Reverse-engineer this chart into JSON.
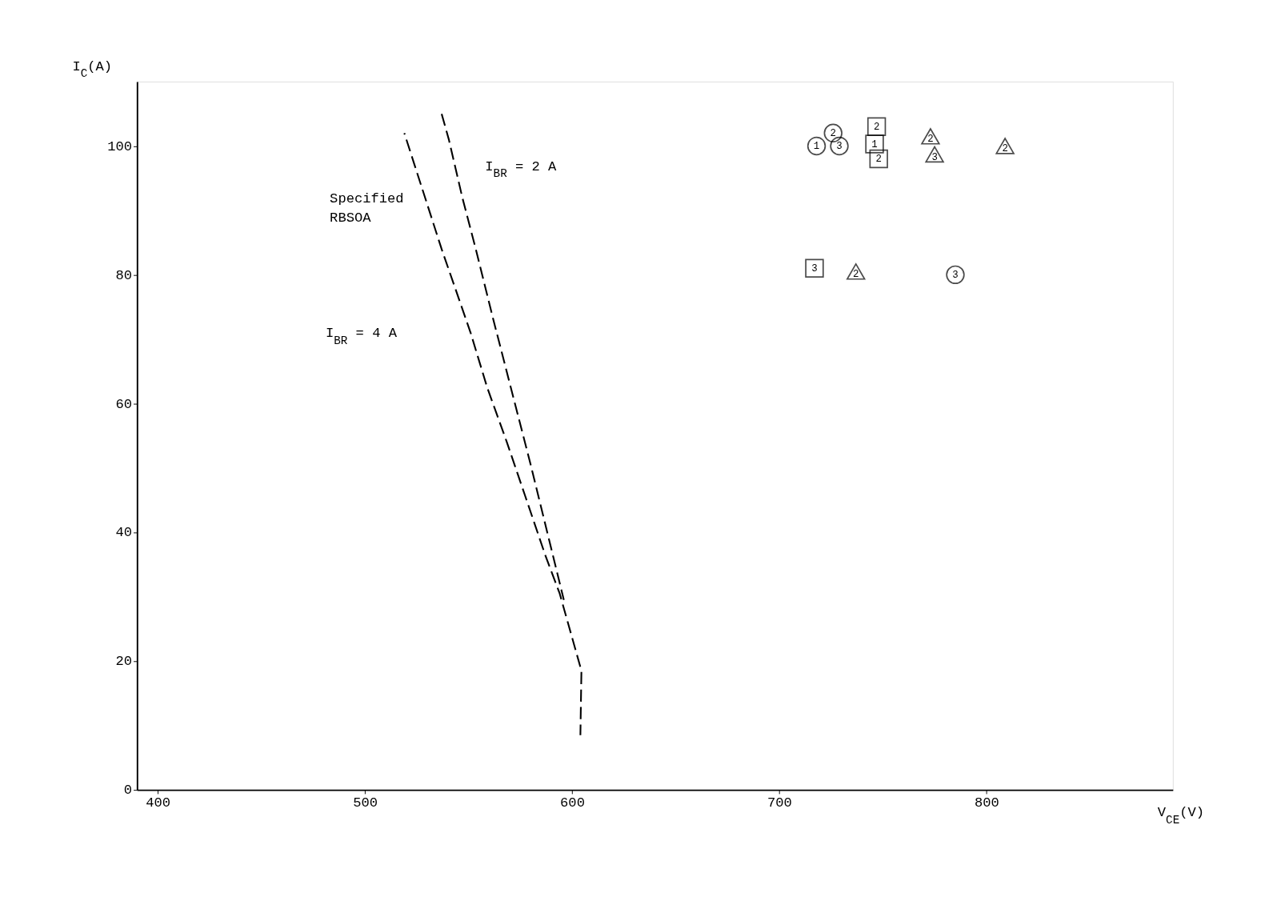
{
  "chart_data": {
    "type": "line",
    "xlabel": "V$_{CE}$(V)",
    "ylabel": "I$_{C}$(A)",
    "xlim": [
      390,
      890
    ],
    "ylim": [
      0,
      110
    ],
    "xticks": [
      400,
      500,
      600,
      700,
      800
    ],
    "yticks": [
      0,
      20,
      40,
      60,
      80,
      100
    ],
    "grid": false,
    "line_style": "dashed",
    "series": [
      {
        "color": "#000000",
        "x": [
          519,
          524,
          531,
          537,
          551,
          559,
          568.5,
          577.5,
          587,
          594,
          604.5,
          604
        ],
        "values": [
          102,
          97,
          90,
          84,
          71,
          62.5,
          54,
          45.5,
          36.5,
          30.5,
          18.5,
          8.5
        ]
      },
      {
        "color": "#000000",
        "x": [
          537,
          540.5,
          547,
          553.5,
          562,
          570,
          580,
          588,
          596
        ],
        "values": [
          105,
          101,
          92,
          84,
          73,
          63,
          50.5,
          40,
          29.5
        ]
      },
      {
        "type": "scatter",
        "name": "1",
        "marker": "circle",
        "color": "#000000",
        "x": [
          718
        ],
        "values": [
          100
        ]
      },
      {
        "type": "scatter",
        "name": "2",
        "marker": "circle",
        "color": "#000000",
        "x": [
          726
        ],
        "values": [
          102
        ]
      },
      {
        "type": "scatter",
        "name": "3",
        "marker": "circle",
        "color": "#000000",
        "x": [
          729,
          785
        ],
        "values": [
          100,
          80
        ]
      },
      {
        "type": "scatter",
        "name": "2",
        "marker": "square",
        "color": "#000000",
        "x": [
          747,
          748
        ],
        "values": [
          103,
          98
        ]
      },
      {
        "type": "scatter",
        "name": "1",
        "marker": "square",
        "color": "#000000",
        "x": [
          746
        ],
        "values": [
          100.3
        ]
      },
      {
        "type": "scatter",
        "name": "3",
        "marker": "square",
        "color": "#000000",
        "x": [
          717
        ],
        "values": [
          81
        ]
      },
      {
        "type": "scatter",
        "name": "2",
        "marker": "triangle",
        "color": "#000000",
        "x": [
          773,
          737,
          809
        ],
        "values": [
          101.5,
          80.5,
          100
        ]
      },
      {
        "type": "scatter",
        "name": "3",
        "marker": "triangle",
        "color": "#000000",
        "x": [
          775
        ],
        "values": [
          98.7
        ]
      }
    ],
    "annotations": [
      "Specified\nRBSOA",
      "I$_{BR}$ = 4 A",
      "I$_{BR}$ = 2 A"
    ]
  }
}
